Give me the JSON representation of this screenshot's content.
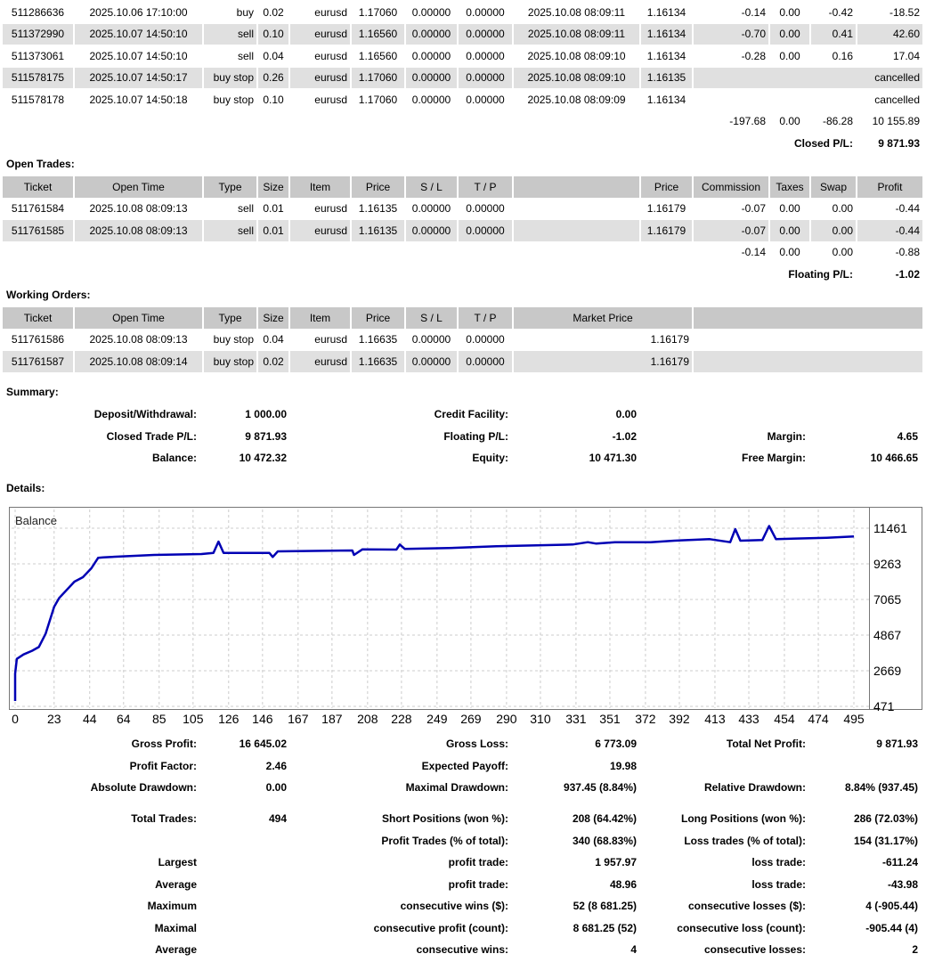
{
  "closed_trades": {
    "rows": [
      [
        "511286636",
        "2025.10.06 17:10:00",
        "buy",
        "0.02",
        "eurusd",
        "1.17060",
        "0.00000",
        "0.00000",
        "2025.10.08 08:09:11",
        "1.16134",
        "-0.14",
        "0.00",
        "-0.42",
        "-18.52"
      ],
      [
        "511372990",
        "2025.10.07 14:50:10",
        "sell",
        "0.10",
        "eurusd",
        "1.16560",
        "0.00000",
        "0.00000",
        "2025.10.08 08:09:11",
        "1.16134",
        "-0.70",
        "0.00",
        "0.41",
        "42.60"
      ],
      [
        "511373061",
        "2025.10.07 14:50:10",
        "sell",
        "0.04",
        "eurusd",
        "1.16560",
        "0.00000",
        "0.00000",
        "2025.10.08 08:09:10",
        "1.16134",
        "-0.28",
        "0.00",
        "0.16",
        "17.04"
      ],
      [
        "511578175",
        "2025.10.07 14:50:17",
        "buy stop",
        "0.26",
        "eurusd",
        "1.17060",
        "0.00000",
        "0.00000",
        "2025.10.08 08:09:10",
        "1.16135",
        "",
        "",
        "",
        "cancelled"
      ],
      [
        "511578178",
        "2025.10.07 14:50:18",
        "buy stop",
        "0.10",
        "eurusd",
        "1.17060",
        "0.00000",
        "0.00000",
        "2025.10.08 08:09:09",
        "1.16134",
        "",
        "",
        "",
        "cancelled"
      ]
    ],
    "totals": {
      "commission": "-197.68",
      "taxes": "0.00",
      "swap": "-86.28",
      "profit": "10 155.89"
    },
    "pl_label": "Closed P/L:",
    "pl_value": "9 871.93"
  },
  "open_trades": {
    "title": "Open Trades:",
    "headers": [
      "Ticket",
      "Open Time",
      "Type",
      "Size",
      "Item",
      "Price",
      "S / L",
      "T / P",
      "",
      "Price",
      "Commission",
      "Taxes",
      "Swap",
      "Profit"
    ],
    "rows": [
      [
        "511761584",
        "2025.10.08 08:09:13",
        "sell",
        "0.01",
        "eurusd",
        "1.16135",
        "0.00000",
        "0.00000",
        "",
        "1.16179",
        "-0.07",
        "0.00",
        "0.00",
        "-0.44"
      ],
      [
        "511761585",
        "2025.10.08 08:09:13",
        "sell",
        "0.01",
        "eurusd",
        "1.16135",
        "0.00000",
        "0.00000",
        "",
        "1.16179",
        "-0.07",
        "0.00",
        "0.00",
        "-0.44"
      ]
    ],
    "totals": {
      "commission": "-0.14",
      "taxes": "0.00",
      "swap": "0.00",
      "profit": "-0.88"
    },
    "pl_label": "Floating P/L:",
    "pl_value": "-1.02"
  },
  "working_orders": {
    "title": "Working Orders:",
    "headers": [
      "Ticket",
      "Open Time",
      "Type",
      "Size",
      "Item",
      "Price",
      "S / L",
      "T / P",
      "Market Price",
      ""
    ],
    "rows": [
      [
        "511761586",
        "2025.10.08 08:09:13",
        "buy stop",
        "0.04",
        "eurusd",
        "1.16635",
        "0.00000",
        "0.00000",
        "1.16179"
      ],
      [
        "511761587",
        "2025.10.08 08:09:14",
        "buy stop",
        "0.02",
        "eurusd",
        "1.16635",
        "0.00000",
        "0.00000",
        "1.16179"
      ]
    ]
  },
  "summary": {
    "title": "Summary:",
    "rows": [
      [
        "Deposit/Withdrawal:",
        "1 000.00",
        "Credit Facility:",
        "0.00",
        "",
        ""
      ],
      [
        "Closed Trade P/L:",
        "9 871.93",
        "Floating P/L:",
        "-1.02",
        "Margin:",
        "4.65"
      ],
      [
        "Balance:",
        "10 472.32",
        "Equity:",
        "10 471.30",
        "Free Margin:",
        "10 466.65"
      ]
    ]
  },
  "details": {
    "title": "Details:",
    "rows_a": [
      [
        "Gross Profit:",
        "16 645.02",
        "Gross Loss:",
        "6 773.09",
        "Total Net Profit:",
        "9 871.93"
      ],
      [
        "Profit Factor:",
        "2.46",
        "Expected Payoff:",
        "19.98",
        "",
        ""
      ],
      [
        "Absolute Drawdown:",
        "0.00",
        "Maximal Drawdown:",
        "937.45 (8.84%)",
        "Relative Drawdown:",
        "8.84% (937.45)"
      ]
    ],
    "rows_b": [
      [
        "Total Trades:",
        "494",
        "Short Positions (won %):",
        "208 (64.42%)",
        "Long Positions (won %):",
        "286 (72.03%)"
      ],
      [
        "",
        "",
        "Profit Trades (% of total):",
        "340 (68.83%)",
        "Loss trades (% of total):",
        "154 (31.17%)"
      ],
      [
        "Largest",
        "",
        "profit trade:",
        "1 957.97",
        "loss trade:",
        "-611.24"
      ],
      [
        "Average",
        "",
        "profit trade:",
        "48.96",
        "loss trade:",
        "-43.98"
      ],
      [
        "Maximum",
        "",
        "consecutive wins ($):",
        "52 (8 681.25)",
        "consecutive losses ($):",
        "4 (-905.44)"
      ],
      [
        "Maximal",
        "",
        "consecutive profit (count):",
        "8 681.25 (52)",
        "consecutive loss (count):",
        "-905.44 (4)"
      ],
      [
        "Average",
        "",
        "consecutive wins:",
        "4",
        "consecutive losses:",
        "2"
      ]
    ]
  },
  "chart_data": {
    "type": "line",
    "title": "Balance",
    "xlabel": "",
    "ylabel": "",
    "x_ticks": [
      0,
      23,
      44,
      64,
      85,
      105,
      126,
      146,
      167,
      187,
      208,
      228,
      249,
      269,
      290,
      310,
      331,
      351,
      372,
      392,
      413,
      433,
      454,
      474,
      495
    ],
    "y_ticks": [
      471,
      2669,
      4867,
      7065,
      9263,
      11461
    ],
    "xlim": [
      0,
      495
    ],
    "ylim": [
      471,
      11461
    ],
    "grid": true,
    "line_color": "#0000b4",
    "series": [
      {
        "name": "Balance",
        "points": [
          [
            0,
            800
          ],
          [
            0,
            2486
          ],
          [
            1,
            3400
          ],
          [
            5,
            3676
          ],
          [
            10,
            3900
          ],
          [
            14,
            4130
          ],
          [
            18,
            4960
          ],
          [
            23,
            6607
          ],
          [
            26,
            7156
          ],
          [
            35,
            8164
          ],
          [
            40,
            8439
          ],
          [
            45,
            8988
          ],
          [
            49,
            9630
          ],
          [
            52,
            9665
          ],
          [
            82,
            9813
          ],
          [
            110,
            9868
          ],
          [
            117,
            9941
          ],
          [
            120,
            10637
          ],
          [
            123,
            9941
          ],
          [
            150,
            9941
          ],
          [
            152,
            9685
          ],
          [
            155,
            10033
          ],
          [
            199,
            10088
          ],
          [
            200,
            9813
          ],
          [
            205,
            10161
          ],
          [
            225,
            10143
          ],
          [
            227,
            10454
          ],
          [
            230,
            10180
          ],
          [
            256,
            10234
          ],
          [
            284,
            10344
          ],
          [
            329,
            10454
          ],
          [
            338,
            10600
          ],
          [
            343,
            10509
          ],
          [
            354,
            10600
          ],
          [
            375,
            10600
          ],
          [
            389,
            10692
          ],
          [
            410,
            10784
          ],
          [
            422,
            10600
          ],
          [
            425,
            11406
          ],
          [
            428,
            10692
          ],
          [
            441,
            10728
          ],
          [
            445,
            11600
          ],
          [
            449,
            10784
          ],
          [
            479,
            10875
          ],
          [
            495,
            10948
          ]
        ]
      }
    ]
  }
}
